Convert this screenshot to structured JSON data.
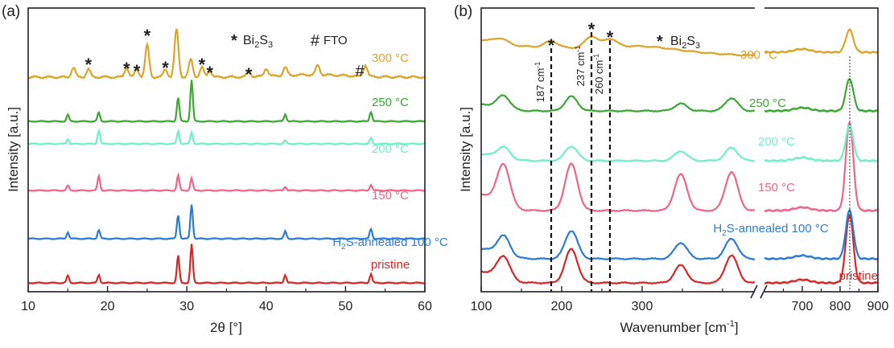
{
  "chart_data": [
    {
      "type": "line",
      "panel_label": "(a)",
      "xlabel": "2θ [°]",
      "ylabel": "Intensity [a.u.]",
      "xlim": [
        10,
        60
      ],
      "xticks": [
        "10",
        "20",
        "30",
        "40",
        "50",
        "60"
      ],
      "legend_marks": {
        "star_symbol": "*",
        "star_label": "Bi2S3",
        "hash_symbol": "#",
        "hash_label": "FTO"
      },
      "series": [
        {
          "name": "pristine",
          "color": "#d62728",
          "peaks": [
            15.0,
            18.9,
            28.9,
            30.6,
            42.4,
            53.2
          ]
        },
        {
          "name": "H2S-annealed 100 °C",
          "color": "#2b7bd6",
          "peaks": [
            15.0,
            18.9,
            28.9,
            30.6,
            42.4,
            53.2
          ]
        },
        {
          "name": "150 °C",
          "color": "#f06489",
          "peaks": [
            15.0,
            18.9,
            28.9,
            30.6,
            42.4,
            53.2
          ]
        },
        {
          "name": "200 °C",
          "color": "#6ff0c4",
          "peaks": [
            15.0,
            18.9,
            28.9,
            30.6,
            42.4,
            53.2
          ]
        },
        {
          "name": "250 °C",
          "color": "#3aa832",
          "peaks": [
            15.0,
            18.9,
            28.9,
            30.6,
            42.4,
            53.2
          ]
        },
        {
          "name": "300 °C",
          "color": "#d9a52b",
          "peaks": [
            15.7,
            17.6,
            22.4,
            23.7,
            25.0,
            27.3,
            28.7,
            30.5,
            31.9,
            32.9,
            37.8,
            40.0,
            42.4,
            46.5,
            52.5
          ]
        }
      ],
      "star_positions": [
        17.6,
        22.4,
        23.7,
        25.0,
        27.3,
        31.9,
        32.9,
        37.8
      ],
      "hash_positions": [
        51.8
      ]
    },
    {
      "type": "line",
      "panel_label": "(b)",
      "xlabel": "Wavenumber [cm-1]",
      "ylabel": "Intensity [a.u.]",
      "x_break": [
        440,
        600
      ],
      "xticks": [
        "100",
        "200",
        "300",
        "700",
        "800",
        "900"
      ],
      "legend_marks": {
        "star_symbol": "*",
        "star_label": "Bi2S3"
      },
      "reference_lines": [
        {
          "x": 187,
          "label": "187 cm-1"
        },
        {
          "x": 237,
          "label": "237 cm-1"
        },
        {
          "x": 260,
          "label": "260 cm-1"
        }
      ],
      "series": [
        {
          "name": "pristine",
          "color": "#d62728",
          "peaks": [
            128,
            212,
            348,
            411,
            825
          ]
        },
        {
          "name": "H2S-annealed 100 °C",
          "color": "#2b7bd6",
          "peaks": [
            128,
            212,
            348,
            411,
            825
          ]
        },
        {
          "name": "150 °C",
          "color": "#f06489",
          "peaks": [
            128,
            212,
            348,
            411,
            825
          ]
        },
        {
          "name": "200 °C",
          "color": "#6ff0c4",
          "peaks": [
            128,
            212,
            348,
            411,
            825
          ]
        },
        {
          "name": "250 °C",
          "color": "#3aa832",
          "peaks": [
            128,
            212,
            348,
            411,
            825
          ]
        },
        {
          "name": "300 °C",
          "color": "#d9a52b",
          "peaks": [
            125,
            187,
            237,
            260,
            825
          ]
        }
      ]
    }
  ]
}
